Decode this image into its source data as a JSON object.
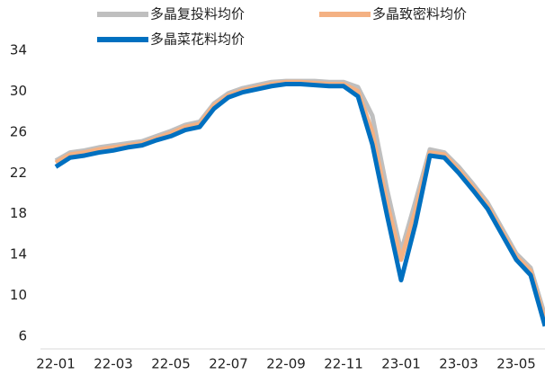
{
  "chart_data": {
    "type": "line",
    "categories": [
      "22-01",
      null,
      null,
      null,
      "22-03",
      null,
      null,
      null,
      "22-05",
      null,
      null,
      null,
      "22-07",
      null,
      null,
      null,
      "22-09",
      null,
      null,
      null,
      "22-11",
      null,
      null,
      null,
      "23-01",
      null,
      null,
      null,
      "23-03",
      null,
      null,
      null,
      "23-05",
      null,
      null
    ],
    "series": [
      {
        "name": "多晶复投料均价",
        "color": "#bfbfbf",
        "values": [
          23.2,
          24.0,
          24.2,
          24.5,
          24.7,
          24.9,
          25.1,
          25.6,
          26.1,
          26.7,
          27.0,
          28.8,
          29.8,
          30.3,
          30.6,
          30.9,
          31.0,
          31.0,
          31.0,
          30.9,
          30.9,
          30.4,
          27.6,
          20.5,
          14.3,
          19.2,
          24.3,
          24.0,
          22.6,
          20.9,
          19.1,
          16.6,
          14.1,
          12.7,
          8.0
        ]
      },
      {
        "name": "多晶致密料均价",
        "color": "#f4b183",
        "values": [
          23.0,
          23.8,
          24.0,
          24.3,
          24.5,
          24.7,
          24.9,
          25.4,
          25.9,
          26.5,
          26.8,
          28.6,
          29.6,
          30.1,
          30.4,
          30.7,
          30.9,
          30.9,
          30.8,
          30.7,
          30.7,
          30.0,
          26.0,
          19.2,
          13.5,
          18.3,
          24.0,
          23.8,
          22.3,
          20.6,
          18.8,
          16.3,
          13.8,
          12.4,
          7.5
        ]
      },
      {
        "name": "多晶菜花料均价",
        "color": "#0070c0",
        "values": [
          22.6,
          23.5,
          23.7,
          24.0,
          24.2,
          24.5,
          24.7,
          25.2,
          25.6,
          26.2,
          26.5,
          28.3,
          29.4,
          29.9,
          30.2,
          30.5,
          30.7,
          30.7,
          30.6,
          30.5,
          30.5,
          29.5,
          24.8,
          18.0,
          11.5,
          17.0,
          23.7,
          23.5,
          22.0,
          20.3,
          18.5,
          16.0,
          13.5,
          12.0,
          7.0
        ]
      }
    ],
    "ylim": [
      6,
      34
    ],
    "yticks": [
      6,
      10,
      14,
      18,
      22,
      26,
      30,
      34
    ]
  }
}
